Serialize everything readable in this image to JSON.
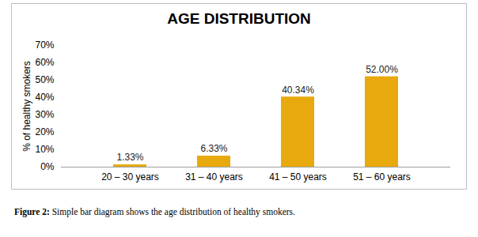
{
  "chart_data": {
    "type": "bar",
    "title": "AGE DISTRIBUTION",
    "caption": "Figure 2: Simple bar diagram shows the age distribution of healthy smokers.",
    "y_label": "% of healthy smokers",
    "categories": [
      "20 – 30 years",
      "31 – 40 years",
      "41 – 50 years",
      "51 – 60 years"
    ],
    "values": [
      1.33,
      6.33,
      40.34,
      52.0
    ],
    "value_labels": [
      "1.33%",
      "6.33%",
      "40.34%",
      "52.00%"
    ],
    "data_labels": true,
    "color": "#E8A90E",
    "ylim": [
      0,
      70
    ],
    "yticks": [
      {
        "value": 0,
        "label": "0%"
      },
      {
        "value": 10,
        "label": "10%"
      },
      {
        "value": 20,
        "label": "20%"
      },
      {
        "value": 30,
        "label": "30%"
      },
      {
        "value": 40,
        "label": "40%"
      },
      {
        "value": 50,
        "label": "50%"
      },
      {
        "value": 60,
        "label": "60%"
      },
      {
        "value": 70,
        "label": "70%"
      }
    ],
    "grid": false
  }
}
